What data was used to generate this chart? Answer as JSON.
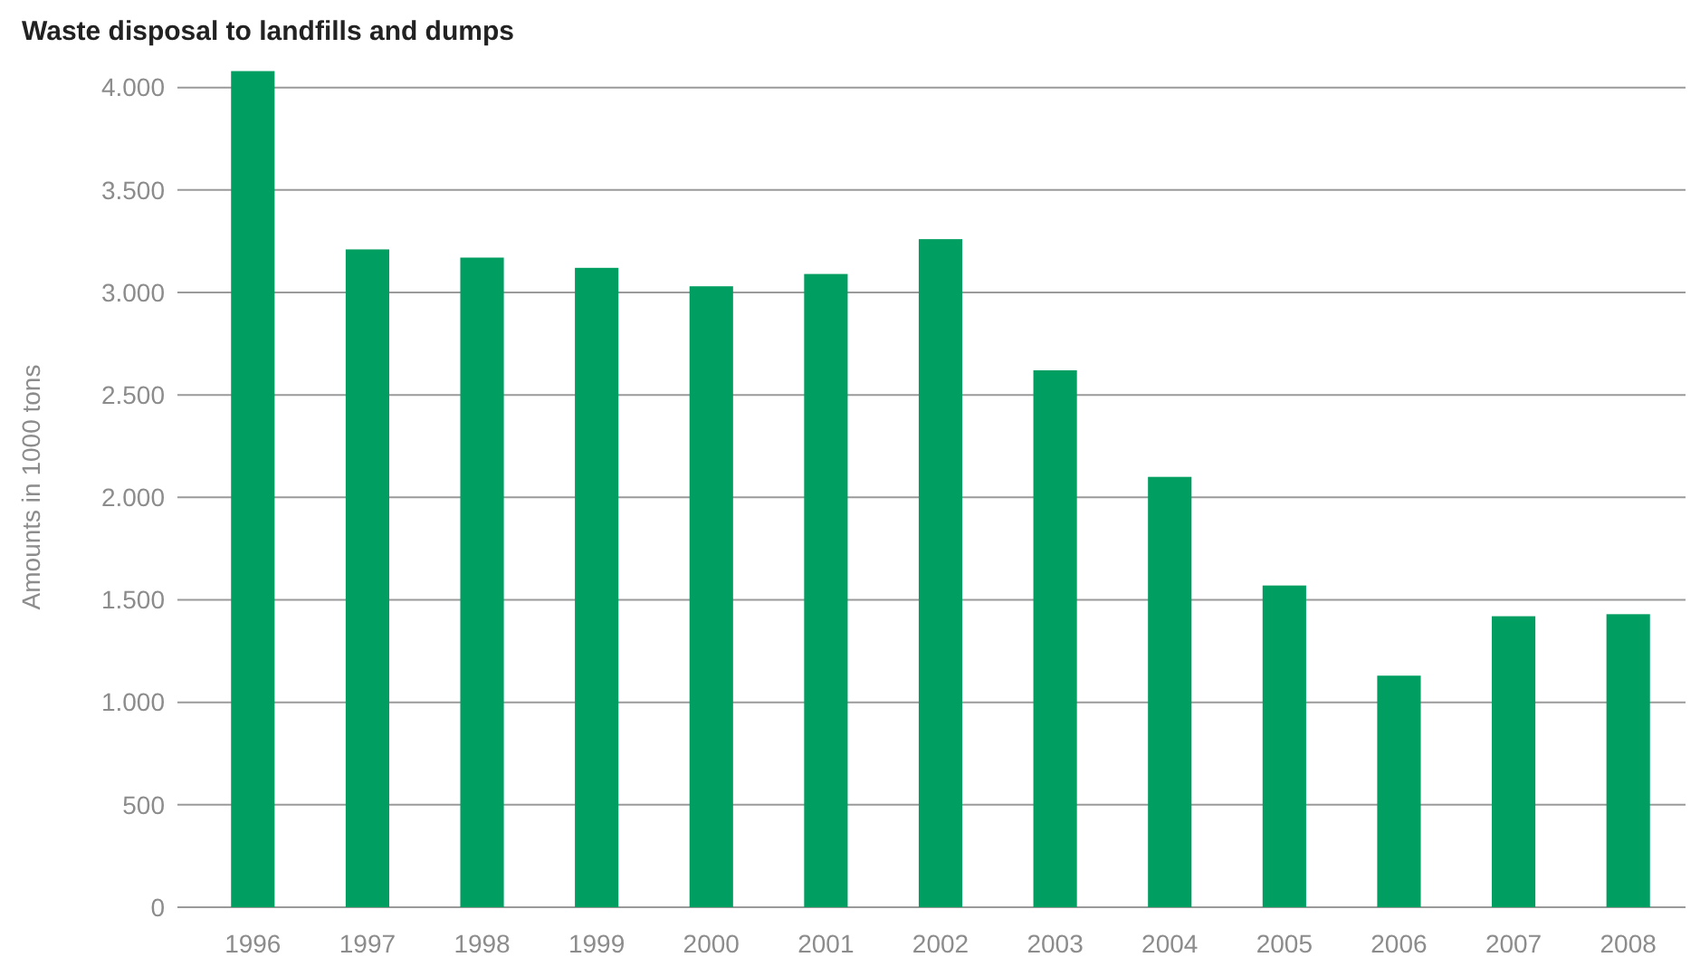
{
  "chart_data": {
    "type": "bar",
    "title": "Waste disposal to landfills and dumps",
    "ylabel": "Amounts in 1000 tons",
    "categories": [
      "1996",
      "1997",
      "1998",
      "1999",
      "2000",
      "2001",
      "2002",
      "2003",
      "2004",
      "2005",
      "2006",
      "2007",
      "2008"
    ],
    "values": [
      4080,
      3210,
      3170,
      3120,
      3030,
      3090,
      3260,
      2620,
      2100,
      1570,
      1130,
      1420,
      1430
    ],
    "color": "#009e60",
    "ylim": [
      0,
      4100
    ],
    "yticks": [
      {
        "value": 0,
        "label": "0"
      },
      {
        "value": 500,
        "label": "500"
      },
      {
        "value": 1000,
        "label": "1.000"
      },
      {
        "value": 1500,
        "label": "1.500"
      },
      {
        "value": 2000,
        "label": "2.000"
      },
      {
        "value": 2500,
        "label": "2.500"
      },
      {
        "value": 3000,
        "label": "3.000"
      },
      {
        "value": 3500,
        "label": "3.500"
      },
      {
        "value": 4000,
        "label": "4.000"
      }
    ],
    "grid": "y"
  }
}
